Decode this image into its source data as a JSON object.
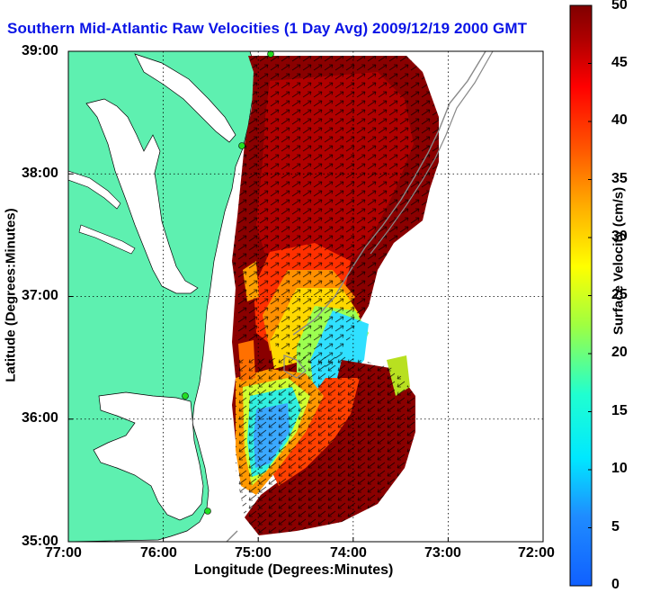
{
  "title": "Southern Mid-Atlantic Raw Velocities (1 Day Avg) 2009/12/19 2000 GMT",
  "x_axis": {
    "label": "Longitude (Degrees:Minutes)",
    "ticks": [
      "77:00",
      "76:00",
      "75:00",
      "74:00",
      "73:00",
      "72:00"
    ]
  },
  "y_axis": {
    "label": "Latitude (Degrees:Minutes)",
    "ticks": [
      "39:00",
      "38:00",
      "37:00",
      "36:00",
      "35:00"
    ]
  },
  "colorbar": {
    "label": "Surface Velocity (cm/s)",
    "ticks": [
      "0",
      "5",
      "10",
      "15",
      "20",
      "25",
      "30",
      "35",
      "40",
      "45",
      "50"
    ],
    "range": [
      0,
      50
    ]
  },
  "colors": {
    "land": "#5ef0b0",
    "title": "#0a14e6",
    "station": "#22dd22",
    "coastline": "#000000",
    "isobath": "#888888"
  },
  "map": {
    "extent_lon": [
      -77,
      -72
    ],
    "extent_lat": [
      35,
      39
    ],
    "grid": true,
    "stations": [
      "station-north",
      "station-delaware",
      "station-hatteras-north",
      "station-hatteras-south"
    ]
  }
}
